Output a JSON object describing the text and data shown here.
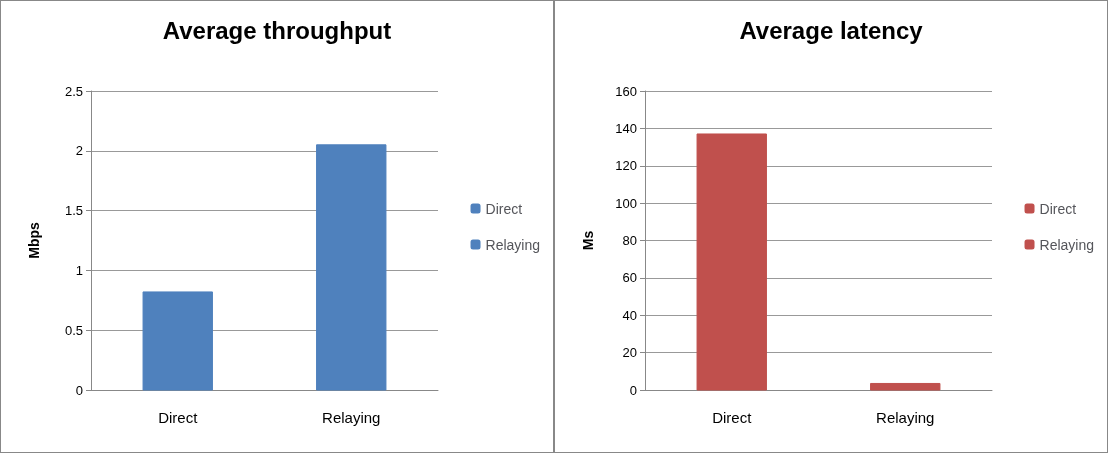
{
  "chart_data": [
    {
      "type": "bar",
      "title": "Average throughput",
      "ylabel": "Mbps",
      "categories": [
        "Direct",
        "Relaying"
      ],
      "series": [
        {
          "name": "Direct",
          "color": "#4f81bd",
          "values": [
            0.82,
            null
          ]
        },
        {
          "name": "Relaying",
          "color": "#4f81bd",
          "values": [
            null,
            2.05
          ]
        }
      ],
      "ylim": [
        0,
        2.5
      ],
      "yticks": [
        0,
        0.5,
        1,
        1.5,
        2,
        2.5
      ],
      "grid": "y",
      "legend": "right"
    },
    {
      "type": "bar",
      "title": "Average latency",
      "ylabel": "Ms",
      "categories": [
        "Direct",
        "Relaying"
      ],
      "series": [
        {
          "name": "Direct",
          "color": "#c0504d",
          "values": [
            137,
            null
          ]
        },
        {
          "name": "Relaying",
          "color": "#c0504d",
          "values": [
            null,
            3.5
          ]
        }
      ],
      "ylim": [
        0,
        160
      ],
      "yticks": [
        0,
        20,
        40,
        60,
        80,
        100,
        120,
        140,
        160
      ],
      "grid": "y",
      "legend": "right"
    }
  ]
}
